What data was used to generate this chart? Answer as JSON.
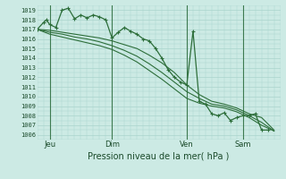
{
  "background_color": "#cceae4",
  "grid_color": "#aad4cc",
  "line_color_main": "#2d6e3a",
  "line_color_smooth": "#2d6e3a",
  "vline_color": "#3d7a50",
  "title": "Pression niveau de la mer( hPa )",
  "xlim": [
    0,
    78
  ],
  "ylim": [
    1005.5,
    1019.5
  ],
  "yticks": [
    1006,
    1007,
    1008,
    1009,
    1010,
    1011,
    1012,
    1013,
    1014,
    1015,
    1016,
    1017,
    1018,
    1019
  ],
  "xtick_labels": [
    "Jeu",
    "Dim",
    "Ven",
    "Sam"
  ],
  "xtick_positions": [
    4,
    24,
    48,
    66
  ],
  "vline_positions": [
    4,
    24,
    48,
    66
  ],
  "series1_x": [
    0,
    2,
    3,
    4,
    6,
    8,
    10,
    12,
    14,
    16,
    18,
    20,
    22,
    24,
    26,
    28,
    30,
    32,
    34,
    36,
    38,
    40,
    42,
    44,
    46,
    48,
    50,
    52,
    54,
    56,
    58,
    60,
    62,
    64,
    66,
    68,
    70,
    72,
    74
  ],
  "series1_y": [
    1017.0,
    1017.7,
    1018.0,
    1017.5,
    1017.2,
    1019.0,
    1019.2,
    1018.1,
    1018.5,
    1018.2,
    1018.5,
    1018.3,
    1018.0,
    1016.1,
    1016.7,
    1017.2,
    1016.8,
    1016.5,
    1016.0,
    1015.8,
    1015.0,
    1014.0,
    1012.8,
    1012.0,
    1011.5,
    1011.2,
    1016.8,
    1009.5,
    1009.2,
    1008.2,
    1008.0,
    1008.3,
    1007.5,
    1007.8,
    1008.0,
    1008.0,
    1008.2,
    1006.5,
    1006.5
  ],
  "series2_x": [
    0,
    4,
    8,
    12,
    16,
    20,
    24,
    28,
    32,
    36,
    40,
    44,
    48,
    52,
    56,
    60,
    64,
    68,
    72,
    76
  ],
  "series2_y": [
    1017.0,
    1016.9,
    1016.7,
    1016.5,
    1016.3,
    1016.1,
    1015.8,
    1015.4,
    1015.0,
    1014.3,
    1013.5,
    1012.5,
    1011.2,
    1010.2,
    1009.5,
    1009.2,
    1008.8,
    1008.2,
    1007.8,
    1006.5
  ],
  "series3_x": [
    0,
    4,
    8,
    12,
    16,
    20,
    24,
    28,
    32,
    36,
    40,
    44,
    48,
    52,
    56,
    60,
    64,
    68,
    72,
    76
  ],
  "series3_y": [
    1017.0,
    1016.7,
    1016.5,
    1016.2,
    1016.0,
    1015.7,
    1015.3,
    1014.8,
    1014.2,
    1013.4,
    1012.5,
    1011.5,
    1010.5,
    1009.8,
    1009.2,
    1009.0,
    1008.6,
    1008.0,
    1007.3,
    1006.4
  ],
  "series4_x": [
    0,
    4,
    8,
    12,
    16,
    20,
    24,
    28,
    32,
    36,
    40,
    44,
    48,
    52,
    56,
    60,
    64,
    68,
    72,
    76
  ],
  "series4_y": [
    1017.0,
    1016.5,
    1016.2,
    1015.9,
    1015.6,
    1015.3,
    1014.9,
    1014.3,
    1013.6,
    1012.7,
    1011.8,
    1010.8,
    1009.8,
    1009.3,
    1009.0,
    1008.8,
    1008.4,
    1007.8,
    1007.0,
    1006.4
  ]
}
